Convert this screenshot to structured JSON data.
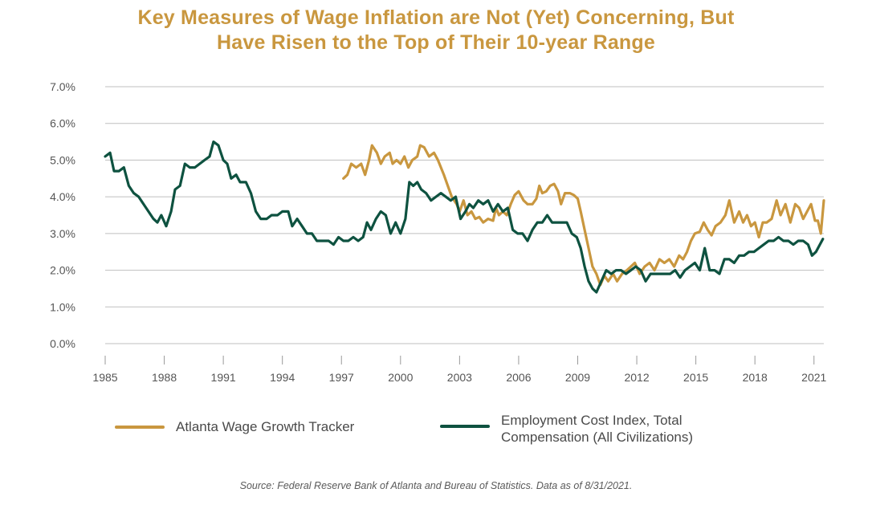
{
  "title_line1": "Key Measures of Wage Inflation are Not (Yet) Concerning, But",
  "title_line2": "Have Risen to the Top of Their 10-year Range",
  "source": "Source: Federal Reserve Bank of Atlanta and Bureau of Statistics. Data as of 8/31/2021.",
  "colors": {
    "atlanta": "#c9973f",
    "eci": "#0e5240",
    "grid": "#bfbfbf",
    "axis_text": "#555555"
  },
  "legend": [
    {
      "label": "Atlanta Wage Growth Tracker",
      "color": "#c9973f"
    },
    {
      "label": "Employment Cost Index, Total",
      "label2": "Compensation (All Civilizations)",
      "color": "#0e5240"
    }
  ],
  "chart_data": {
    "type": "line",
    "title": "Key Measures of Wage Inflation are Not (Yet) Concerning, But Have Risen to the Top of Their 10-year Range",
    "xlim": [
      1985,
      2021.5
    ],
    "ylim": [
      0,
      7
    ],
    "x_ticks": [
      1985,
      1988,
      1991,
      1994,
      1997,
      2000,
      2003,
      2006,
      2009,
      2012,
      2015,
      2018,
      2021
    ],
    "y_ticks": [
      {
        "v": 0,
        "label": "0.0%"
      },
      {
        "v": 1,
        "label": "1.0%"
      },
      {
        "v": 2,
        "label": "2.0%"
      },
      {
        "v": 3,
        "label": "3.0%"
      },
      {
        "v": 4,
        "label": "4.0%"
      },
      {
        "v": 5,
        "label": "5.0%"
      },
      {
        "v": 6,
        "label": "6.0%"
      },
      {
        "v": 7,
        "label": "7.0%"
      }
    ],
    "grid": true,
    "legend_position": "bottom",
    "series": [
      {
        "name": "Atlanta Wage Growth Tracker",
        "color": "#c9973f",
        "points": [
          [
            1997.1,
            4.5
          ],
          [
            1997.3,
            4.6
          ],
          [
            1997.5,
            4.9
          ],
          [
            1997.75,
            4.8
          ],
          [
            1998.0,
            4.9
          ],
          [
            1998.2,
            4.6
          ],
          [
            1998.4,
            5.0
          ],
          [
            1998.55,
            5.4
          ],
          [
            1998.8,
            5.2
          ],
          [
            1999.0,
            4.9
          ],
          [
            1999.2,
            5.1
          ],
          [
            1999.45,
            5.2
          ],
          [
            1999.6,
            4.9
          ],
          [
            1999.8,
            5.0
          ],
          [
            2000.0,
            4.9
          ],
          [
            2000.2,
            5.1
          ],
          [
            2000.4,
            4.8
          ],
          [
            2000.6,
            5.0
          ],
          [
            2000.85,
            5.1
          ],
          [
            2001.0,
            5.4
          ],
          [
            2001.2,
            5.35
          ],
          [
            2001.45,
            5.1
          ],
          [
            2001.7,
            5.2
          ],
          [
            2001.9,
            5.0
          ],
          [
            2002.2,
            4.6
          ],
          [
            2002.4,
            4.3
          ],
          [
            2002.6,
            4.0
          ],
          [
            2002.85,
            3.8
          ],
          [
            2003.0,
            3.6
          ],
          [
            2003.2,
            3.9
          ],
          [
            2003.4,
            3.5
          ],
          [
            2003.6,
            3.6
          ],
          [
            2003.8,
            3.4
          ],
          [
            2004.0,
            3.45
          ],
          [
            2004.2,
            3.3
          ],
          [
            2004.45,
            3.4
          ],
          [
            2004.7,
            3.35
          ],
          [
            2004.85,
            3.7
          ],
          [
            2005.0,
            3.5
          ],
          [
            2005.2,
            3.6
          ],
          [
            2005.4,
            3.5
          ],
          [
            2005.6,
            3.8
          ],
          [
            2005.8,
            4.05
          ],
          [
            2006.0,
            4.15
          ],
          [
            2006.25,
            3.9
          ],
          [
            2006.45,
            3.8
          ],
          [
            2006.7,
            3.8
          ],
          [
            2006.9,
            3.95
          ],
          [
            2007.05,
            4.3
          ],
          [
            2007.2,
            4.1
          ],
          [
            2007.4,
            4.15
          ],
          [
            2007.6,
            4.3
          ],
          [
            2007.8,
            4.35
          ],
          [
            2008.0,
            4.15
          ],
          [
            2008.15,
            3.8
          ],
          [
            2008.35,
            4.1
          ],
          [
            2008.6,
            4.1
          ],
          [
            2008.8,
            4.05
          ],
          [
            2009.0,
            3.95
          ],
          [
            2009.15,
            3.6
          ],
          [
            2009.35,
            3.1
          ],
          [
            2009.55,
            2.6
          ],
          [
            2009.75,
            2.1
          ],
          [
            2009.95,
            1.9
          ],
          [
            2010.15,
            1.6
          ],
          [
            2010.35,
            1.85
          ],
          [
            2010.55,
            1.7
          ],
          [
            2010.8,
            1.9
          ],
          [
            2011.0,
            1.7
          ],
          [
            2011.25,
            1.9
          ],
          [
            2011.5,
            2.0
          ],
          [
            2011.7,
            2.1
          ],
          [
            2011.9,
            2.2
          ],
          [
            2012.15,
            1.9
          ],
          [
            2012.4,
            2.1
          ],
          [
            2012.65,
            2.2
          ],
          [
            2012.9,
            2.0
          ],
          [
            2013.15,
            2.3
          ],
          [
            2013.4,
            2.2
          ],
          [
            2013.65,
            2.3
          ],
          [
            2013.9,
            2.1
          ],
          [
            2014.15,
            2.4
          ],
          [
            2014.35,
            2.3
          ],
          [
            2014.55,
            2.5
          ],
          [
            2014.75,
            2.8
          ],
          [
            2014.95,
            3.0
          ],
          [
            2015.2,
            3.05
          ],
          [
            2015.4,
            3.3
          ],
          [
            2015.6,
            3.1
          ],
          [
            2015.8,
            2.95
          ],
          [
            2016.0,
            3.2
          ],
          [
            2016.25,
            3.3
          ],
          [
            2016.5,
            3.5
          ],
          [
            2016.7,
            3.9
          ],
          [
            2016.95,
            3.3
          ],
          [
            2017.2,
            3.6
          ],
          [
            2017.4,
            3.3
          ],
          [
            2017.6,
            3.5
          ],
          [
            2017.8,
            3.2
          ],
          [
            2018.0,
            3.3
          ],
          [
            2018.2,
            2.9
          ],
          [
            2018.4,
            3.3
          ],
          [
            2018.6,
            3.3
          ],
          [
            2018.85,
            3.4
          ],
          [
            2019.1,
            3.9
          ],
          [
            2019.3,
            3.5
          ],
          [
            2019.55,
            3.8
          ],
          [
            2019.8,
            3.3
          ],
          [
            2020.05,
            3.8
          ],
          [
            2020.25,
            3.7
          ],
          [
            2020.45,
            3.4
          ],
          [
            2020.65,
            3.6
          ],
          [
            2020.85,
            3.8
          ],
          [
            2021.05,
            3.35
          ],
          [
            2021.2,
            3.35
          ],
          [
            2021.35,
            3.0
          ],
          [
            2021.5,
            3.9
          ]
        ]
      },
      {
        "name": "Employment Cost Index, Total Compensation (All Civilizations)",
        "color": "#0e5240",
        "points": [
          [
            1985.0,
            5.1
          ],
          [
            1985.25,
            5.2
          ],
          [
            1985.45,
            4.7
          ],
          [
            1985.7,
            4.7
          ],
          [
            1985.95,
            4.8
          ],
          [
            1986.2,
            4.3
          ],
          [
            1986.45,
            4.1
          ],
          [
            1986.7,
            4.0
          ],
          [
            1986.95,
            3.8
          ],
          [
            1987.2,
            3.6
          ],
          [
            1987.45,
            3.4
          ],
          [
            1987.65,
            3.3
          ],
          [
            1987.85,
            3.5
          ],
          [
            1988.1,
            3.2
          ],
          [
            1988.35,
            3.6
          ],
          [
            1988.55,
            4.2
          ],
          [
            1988.8,
            4.3
          ],
          [
            1989.05,
            4.9
          ],
          [
            1989.3,
            4.8
          ],
          [
            1989.55,
            4.8
          ],
          [
            1989.8,
            4.9
          ],
          [
            1990.05,
            5.0
          ],
          [
            1990.3,
            5.1
          ],
          [
            1990.5,
            5.5
          ],
          [
            1990.75,
            5.4
          ],
          [
            1991.0,
            5.0
          ],
          [
            1991.2,
            4.9
          ],
          [
            1991.4,
            4.5
          ],
          [
            1991.65,
            4.6
          ],
          [
            1991.85,
            4.4
          ],
          [
            1992.15,
            4.4
          ],
          [
            1992.4,
            4.1
          ],
          [
            1992.65,
            3.6
          ],
          [
            1992.9,
            3.4
          ],
          [
            1993.2,
            3.4
          ],
          [
            1993.45,
            3.5
          ],
          [
            1993.75,
            3.5
          ],
          [
            1994.0,
            3.6
          ],
          [
            1994.3,
            3.6
          ],
          [
            1994.5,
            3.2
          ],
          [
            1994.75,
            3.4
          ],
          [
            1995.0,
            3.2
          ],
          [
            1995.25,
            3.0
          ],
          [
            1995.5,
            3.0
          ],
          [
            1995.75,
            2.8
          ],
          [
            1996.1,
            2.8
          ],
          [
            1996.35,
            2.8
          ],
          [
            1996.6,
            2.7
          ],
          [
            1996.85,
            2.9
          ],
          [
            1997.1,
            2.8
          ],
          [
            1997.35,
            2.8
          ],
          [
            1997.6,
            2.9
          ],
          [
            1997.85,
            2.8
          ],
          [
            1998.1,
            2.9
          ],
          [
            1998.3,
            3.3
          ],
          [
            1998.5,
            3.1
          ],
          [
            1998.75,
            3.4
          ],
          [
            1999.0,
            3.6
          ],
          [
            1999.25,
            3.5
          ],
          [
            1999.5,
            3.0
          ],
          [
            1999.75,
            3.3
          ],
          [
            2000.0,
            3.0
          ],
          [
            2000.25,
            3.4
          ],
          [
            2000.45,
            4.4
          ],
          [
            2000.65,
            4.3
          ],
          [
            2000.85,
            4.4
          ],
          [
            2001.05,
            4.2
          ],
          [
            2001.3,
            4.1
          ],
          [
            2001.55,
            3.9
          ],
          [
            2001.8,
            4.0
          ],
          [
            2002.05,
            4.1
          ],
          [
            2002.3,
            4.0
          ],
          [
            2002.55,
            3.9
          ],
          [
            2002.8,
            4.0
          ],
          [
            2003.05,
            3.4
          ],
          [
            2003.3,
            3.6
          ],
          [
            2003.5,
            3.8
          ],
          [
            2003.7,
            3.7
          ],
          [
            2003.95,
            3.9
          ],
          [
            2004.2,
            3.8
          ],
          [
            2004.45,
            3.9
          ],
          [
            2004.7,
            3.6
          ],
          [
            2004.95,
            3.8
          ],
          [
            2005.2,
            3.6
          ],
          [
            2005.45,
            3.7
          ],
          [
            2005.7,
            3.1
          ],
          [
            2005.95,
            3.0
          ],
          [
            2006.2,
            3.0
          ],
          [
            2006.45,
            2.8
          ],
          [
            2006.7,
            3.1
          ],
          [
            2006.95,
            3.3
          ],
          [
            2007.2,
            3.3
          ],
          [
            2007.45,
            3.5
          ],
          [
            2007.7,
            3.3
          ],
          [
            2007.95,
            3.3
          ],
          [
            2008.2,
            3.3
          ],
          [
            2008.45,
            3.3
          ],
          [
            2008.7,
            3.0
          ],
          [
            2008.95,
            2.9
          ],
          [
            2009.15,
            2.6
          ],
          [
            2009.35,
            2.1
          ],
          [
            2009.55,
            1.7
          ],
          [
            2009.75,
            1.5
          ],
          [
            2009.95,
            1.4
          ],
          [
            2010.2,
            1.7
          ],
          [
            2010.45,
            2.0
          ],
          [
            2010.7,
            1.9
          ],
          [
            2010.95,
            2.0
          ],
          [
            2011.2,
            2.0
          ],
          [
            2011.45,
            1.9
          ],
          [
            2011.7,
            2.0
          ],
          [
            2011.95,
            2.1
          ],
          [
            2012.2,
            2.0
          ],
          [
            2012.45,
            1.7
          ],
          [
            2012.7,
            1.9
          ],
          [
            2012.95,
            1.9
          ],
          [
            2013.2,
            1.9
          ],
          [
            2013.45,
            1.9
          ],
          [
            2013.7,
            1.9
          ],
          [
            2013.95,
            2.0
          ],
          [
            2014.2,
            1.8
          ],
          [
            2014.45,
            2.0
          ],
          [
            2014.7,
            2.1
          ],
          [
            2014.95,
            2.2
          ],
          [
            2015.2,
            2.0
          ],
          [
            2015.45,
            2.6
          ],
          [
            2015.7,
            2.0
          ],
          [
            2015.95,
            2.0
          ],
          [
            2016.2,
            1.9
          ],
          [
            2016.45,
            2.3
          ],
          [
            2016.7,
            2.3
          ],
          [
            2016.95,
            2.2
          ],
          [
            2017.2,
            2.4
          ],
          [
            2017.45,
            2.4
          ],
          [
            2017.7,
            2.5
          ],
          [
            2017.95,
            2.5
          ],
          [
            2018.2,
            2.6
          ],
          [
            2018.45,
            2.7
          ],
          [
            2018.7,
            2.8
          ],
          [
            2018.95,
            2.8
          ],
          [
            2019.2,
            2.9
          ],
          [
            2019.45,
            2.8
          ],
          [
            2019.7,
            2.8
          ],
          [
            2019.95,
            2.7
          ],
          [
            2020.2,
            2.8
          ],
          [
            2020.45,
            2.8
          ],
          [
            2020.7,
            2.7
          ],
          [
            2020.9,
            2.4
          ],
          [
            2021.1,
            2.5
          ],
          [
            2021.3,
            2.7
          ],
          [
            2021.45,
            2.85
          ]
        ]
      }
    ]
  }
}
